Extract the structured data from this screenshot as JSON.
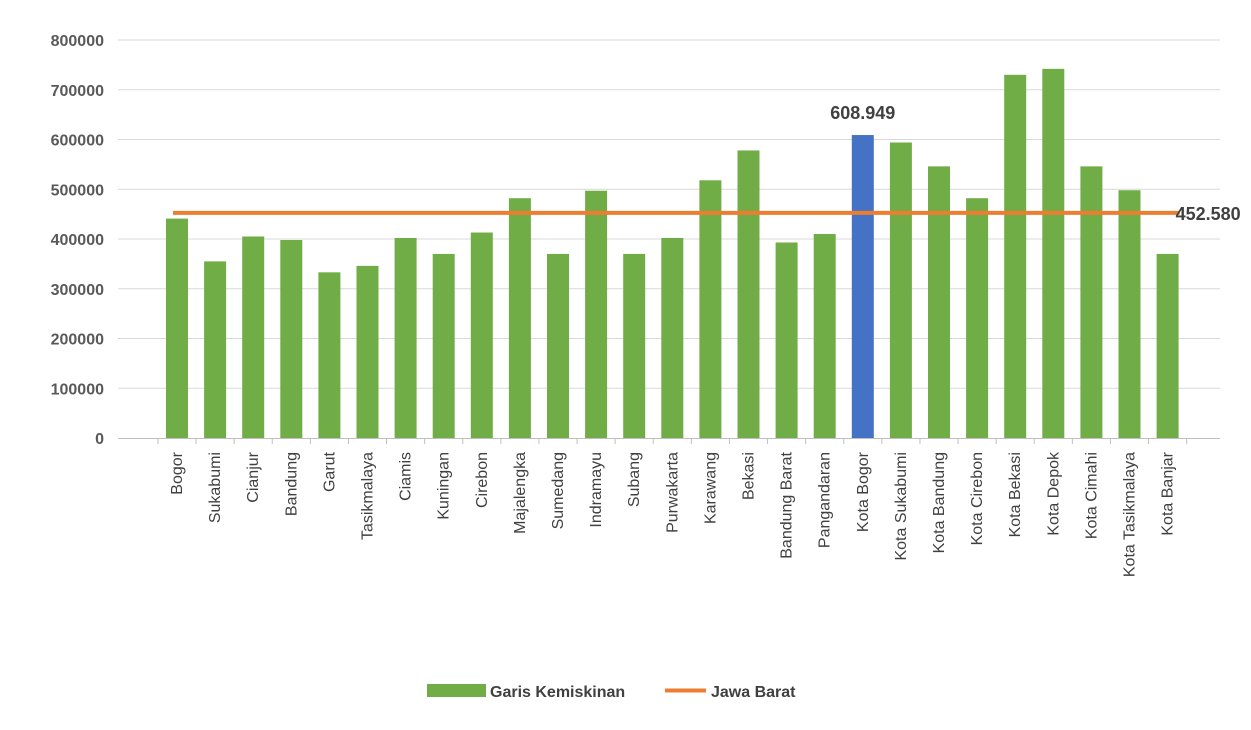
{
  "chart_data": {
    "type": "bar",
    "categories": [
      "Bogor",
      "Sukabumi",
      "Cianjur",
      "Bandung",
      "Garut",
      "Tasikmalaya",
      "Ciamis",
      "Kuningan",
      "Cirebon",
      "Majalengka",
      "Sumedang",
      "Indramayu",
      "Subang",
      "Purwakarta",
      "Karawang",
      "Bekasi",
      "Bandung Barat",
      "Pangandaran",
      "Kota Bogor",
      "Kota Sukabumi",
      "Kota Bandung",
      "Kota Cirebon",
      "Kota Bekasi",
      "Kota Depok",
      "Kota Cimahi",
      "Kota Tasikmalaya",
      "Kota Banjar"
    ],
    "series": [
      {
        "name": "Garis Kemiskinan",
        "type": "bar",
        "color": "#70ad47",
        "values": [
          441000,
          355000,
          405000,
          398000,
          333000,
          346000,
          402000,
          370000,
          413000,
          482000,
          370000,
          497000,
          370000,
          402000,
          518000,
          578000,
          393000,
          410000,
          608949,
          594000,
          546000,
          482000,
          730000,
          742000,
          546000,
          498000,
          370000
        ]
      },
      {
        "name": "Jawa Barat",
        "type": "line",
        "color": "#ed7d31",
        "value": 452580
      }
    ],
    "highlight": {
      "category": "Kota Bogor",
      "color": "#4472c4"
    },
    "annotations": [
      {
        "category": "Kota Bogor",
        "text": "608.949"
      },
      {
        "category": "Kota Banjar",
        "text": "452.580"
      }
    ],
    "y_ticks": [
      "0",
      "100000",
      "200000",
      "300000",
      "400000",
      "500000",
      "600000",
      "700000",
      "800000"
    ],
    "ylim": [
      0,
      800000
    ],
    "grid": true,
    "legend_position": "bottom",
    "title": "",
    "xlabel": "",
    "ylabel": ""
  }
}
